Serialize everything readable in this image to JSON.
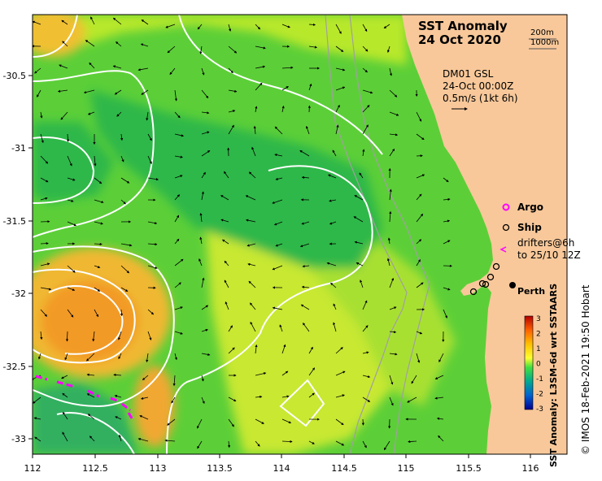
{
  "title_line1": "SST Anomaly",
  "title_line2": "24 Oct 2020",
  "isobath_labels": [
    "200m",
    "1000m"
  ],
  "current_note": {
    "line1": "DM01 GSL",
    "line2": "24-Oct 00:00Z",
    "line3": "0.5m/s (1kt 6h)"
  },
  "legend": {
    "argo": "Argo",
    "ship": "Ship",
    "drifters_line1": "drifters@6h",
    "drifters_line2": "to 25/10 12Z"
  },
  "city": "Perth",
  "colorbar": {
    "label": "SST Anomaly: L3SM-6d wrt SSTAARS",
    "ticks": [
      "3",
      "2",
      "1",
      "0",
      "-1",
      "-2",
      "-3"
    ],
    "colors": [
      "#b30000",
      "#ff6000",
      "#ffc000",
      "#ffff30",
      "#40e040",
      "#00a890",
      "#0060d0",
      "#000090"
    ]
  },
  "x_ticks": [
    "112",
    "112.5",
    "113",
    "113.5",
    "114",
    "114.5",
    "115",
    "115.5",
    "116"
  ],
  "y_ticks": [
    "-30.5",
    "-31",
    "-31.5",
    "-32",
    "-32.5",
    "-33"
  ],
  "credit": "© IMOS 18-Feb-2021 19:50 Hobart",
  "colors": {
    "land": "#f8c89a",
    "contour": "#ffffff",
    "drifter": "#ff00ff",
    "isobath": "#a0a0a0"
  }
}
